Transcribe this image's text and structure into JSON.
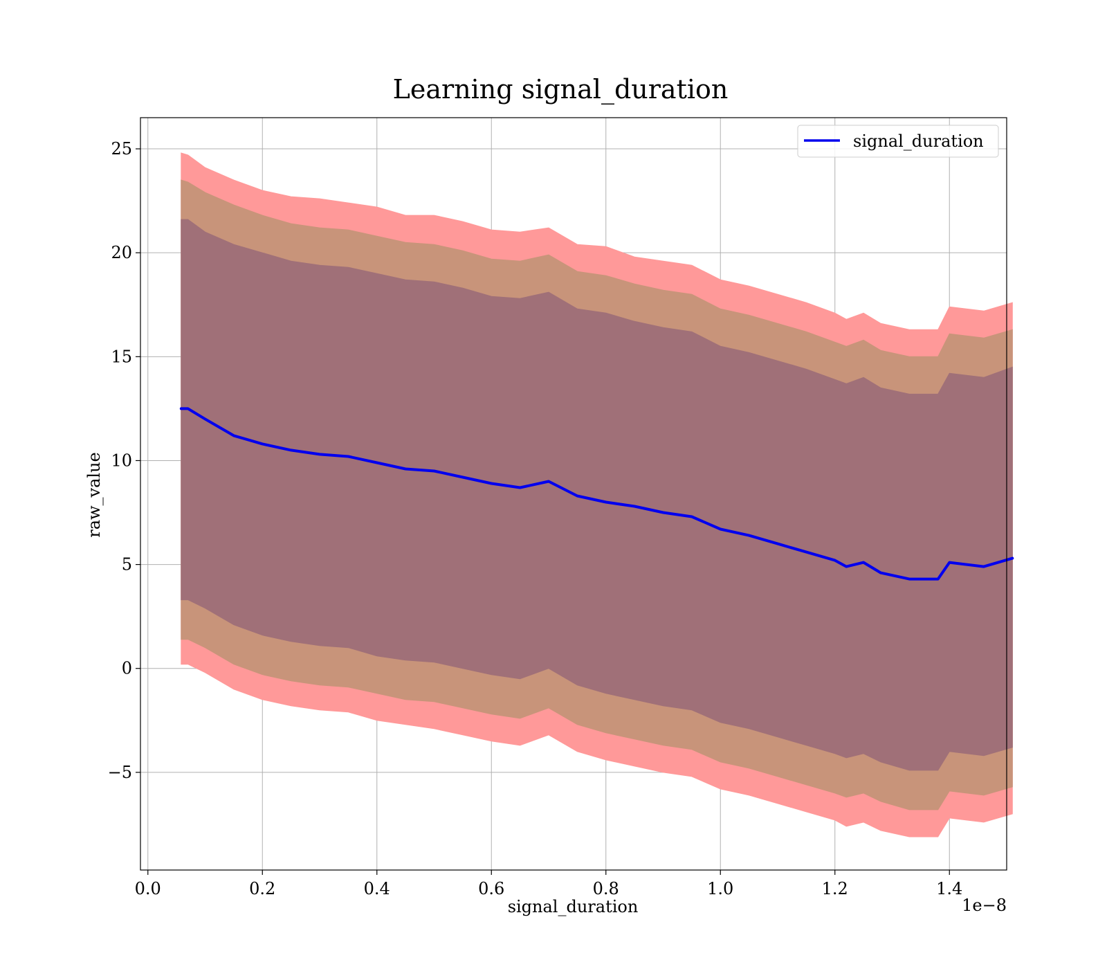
{
  "chart_data": {
    "type": "line",
    "title": "Learning signal_duration",
    "xlabel": "signal_duration",
    "ylabel": "raw_value",
    "x_offset_label": "1e−8",
    "xlim": [
      -0.013,
      1.5
    ],
    "ylim": [
      -9.7,
      26.5
    ],
    "x_ticks": [
      0.0,
      0.2,
      0.4,
      0.6,
      0.8,
      1.0,
      1.2,
      1.4
    ],
    "x_tick_labels": [
      "0.0",
      "0.2",
      "0.4",
      "0.6",
      "0.8",
      "1.0",
      "1.2",
      "1.4"
    ],
    "y_ticks": [
      -5,
      0,
      5,
      10,
      15,
      20,
      25
    ],
    "y_tick_labels": [
      "−5",
      "0",
      "5",
      "10",
      "15",
      "20",
      "25"
    ],
    "grid": true,
    "legend": {
      "placement": "top-right",
      "entries": [
        "signal_duration"
      ]
    },
    "colors": {
      "line": "#0000ee",
      "band_outer": "#ff9999",
      "band_middle": "#c8947a",
      "band_inner": "#a07078"
    },
    "x": [
      0.058,
      0.07,
      0.1,
      0.15,
      0.2,
      0.25,
      0.3,
      0.35,
      0.4,
      0.45,
      0.5,
      0.55,
      0.6,
      0.65,
      0.7,
      0.75,
      0.8,
      0.85,
      0.9,
      0.95,
      1.0,
      1.05,
      1.1,
      1.15,
      1.2,
      1.22,
      1.25,
      1.28,
      1.33,
      1.38,
      1.4,
      1.46,
      1.51
    ],
    "series": [
      {
        "name": "signal_duration",
        "values": [
          12.5,
          12.5,
          12.0,
          11.2,
          10.8,
          10.5,
          10.3,
          10.2,
          9.9,
          9.6,
          9.5,
          9.2,
          8.9,
          8.7,
          9.0,
          8.3,
          8.0,
          7.8,
          7.5,
          7.3,
          6.7,
          6.4,
          6.0,
          5.6,
          5.2,
          4.9,
          5.1,
          4.6,
          4.3,
          4.3,
          5.1,
          4.9,
          5.3
        ]
      }
    ],
    "bands": [
      {
        "upper": [
          24.8,
          24.7,
          24.1,
          23.5,
          23.0,
          22.7,
          22.6,
          22.4,
          22.2,
          21.8,
          21.8,
          21.5,
          21.1,
          21.0,
          21.2,
          20.4,
          20.3,
          19.8,
          19.6,
          19.4,
          18.7,
          18.4,
          18.0,
          17.6,
          17.1,
          16.8,
          17.1,
          16.6,
          16.3,
          16.3,
          17.4,
          17.2,
          17.6
        ],
        "lower": [
          0.2,
          0.2,
          -0.2,
          -1.0,
          -1.5,
          -1.8,
          -2.0,
          -2.1,
          -2.5,
          -2.7,
          -2.9,
          -3.2,
          -3.5,
          -3.7,
          -3.2,
          -4.0,
          -4.4,
          -4.7,
          -5.0,
          -5.2,
          -5.8,
          -6.1,
          -6.5,
          -6.9,
          -7.3,
          -7.6,
          -7.4,
          -7.8,
          -8.1,
          -8.1,
          -7.2,
          -7.4,
          -7.0
        ]
      },
      {
        "upper": [
          23.5,
          23.4,
          22.9,
          22.3,
          21.8,
          21.4,
          21.2,
          21.1,
          20.8,
          20.5,
          20.4,
          20.1,
          19.7,
          19.6,
          19.9,
          19.1,
          18.9,
          18.5,
          18.2,
          18.0,
          17.3,
          17.0,
          16.6,
          16.2,
          15.7,
          15.5,
          15.8,
          15.3,
          15.0,
          15.0,
          16.1,
          15.9,
          16.3
        ],
        "lower": [
          1.4,
          1.4,
          1.0,
          0.2,
          -0.3,
          -0.6,
          -0.8,
          -0.9,
          -1.2,
          -1.5,
          -1.6,
          -1.9,
          -2.2,
          -2.4,
          -1.9,
          -2.7,
          -3.1,
          -3.4,
          -3.7,
          -3.9,
          -4.5,
          -4.8,
          -5.2,
          -5.6,
          -6.0,
          -6.2,
          -6.0,
          -6.4,
          -6.8,
          -6.8,
          -5.9,
          -6.1,
          -5.7
        ]
      },
      {
        "upper": [
          21.6,
          21.6,
          21.0,
          20.4,
          20.0,
          19.6,
          19.4,
          19.3,
          19.0,
          18.7,
          18.6,
          18.3,
          17.9,
          17.8,
          18.1,
          17.3,
          17.1,
          16.7,
          16.4,
          16.2,
          15.5,
          15.2,
          14.8,
          14.4,
          13.9,
          13.7,
          14.0,
          13.5,
          13.2,
          13.2,
          14.2,
          14.0,
          14.5
        ],
        "lower": [
          3.3,
          3.3,
          2.9,
          2.1,
          1.6,
          1.3,
          1.1,
          1.0,
          0.6,
          0.4,
          0.3,
          0.0,
          -0.3,
          -0.5,
          0.0,
          -0.8,
          -1.2,
          -1.5,
          -1.8,
          -2.0,
          -2.6,
          -2.9,
          -3.3,
          -3.7,
          -4.1,
          -4.3,
          -4.1,
          -4.5,
          -4.9,
          -4.9,
          -4.0,
          -4.2,
          -3.8
        ]
      }
    ]
  }
}
